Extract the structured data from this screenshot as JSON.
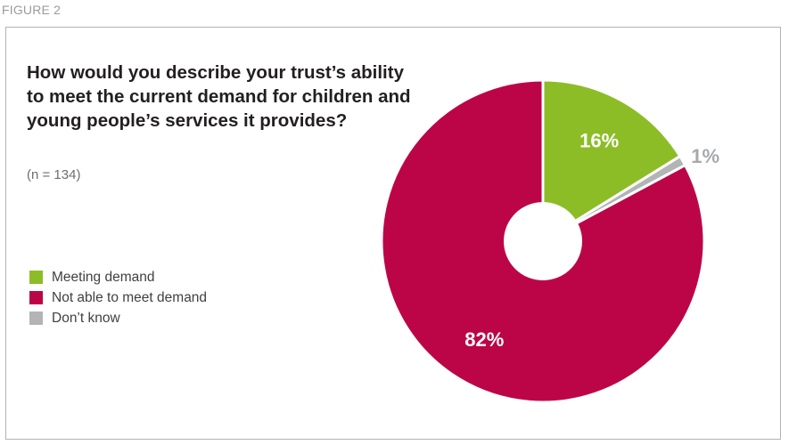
{
  "figure_label": "FIGURE 2",
  "chart_data": {
    "type": "pie",
    "title": "How would you describe your trust’s ability to meet the current demand for children and young people’s services it provides?",
    "subtitle": "(n = 134)",
    "legend_position": "left",
    "categories": [
      "Meeting demand",
      "Not able to meet demand",
      "Don’t know"
    ],
    "values": [
      16,
      82,
      1
    ],
    "data_labels": [
      "16%",
      "82%",
      "1%"
    ],
    "colors": [
      "#8cbd27",
      "#bc0547",
      "#b2b4b6"
    ],
    "label_colors": [
      "#ffffff",
      "#ffffff",
      "#a7a9ac"
    ],
    "donut": true
  }
}
